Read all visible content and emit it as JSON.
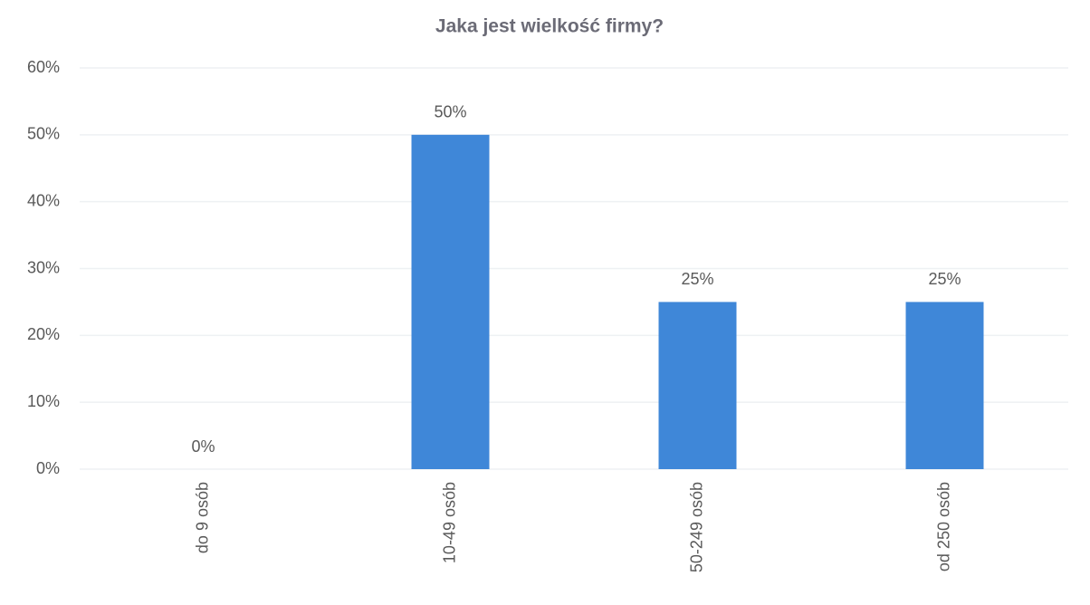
{
  "chart_data": {
    "type": "bar",
    "title": "Jaka jest wielkość firmy?",
    "categories": [
      "do 9 osób",
      "10-49 osób",
      "50-249 osób",
      "od 250 osób"
    ],
    "values": [
      0,
      50,
      25,
      25
    ],
    "value_labels": [
      "0%",
      "50%",
      "25%",
      "25%"
    ],
    "color": "#3f87d8",
    "ylim": [
      0,
      60
    ],
    "yticks": [
      {
        "value": 0,
        "label": "0%"
      },
      {
        "value": 10,
        "label": "10%"
      },
      {
        "value": 20,
        "label": "20%"
      },
      {
        "value": 30,
        "label": "30%"
      },
      {
        "value": 40,
        "label": "40%"
      },
      {
        "value": 50,
        "label": "50%"
      },
      {
        "value": 60,
        "label": "60%"
      }
    ],
    "grid": true
  }
}
